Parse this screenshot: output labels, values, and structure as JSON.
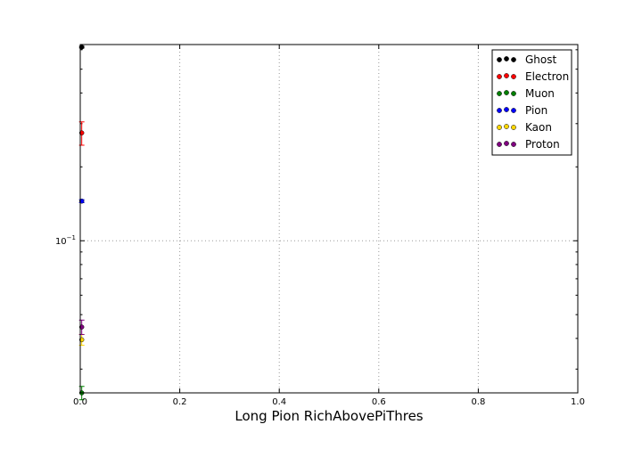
{
  "chart_data": {
    "type": "scatter",
    "title": "",
    "xlabel": "Long Pion RichAbovePiThres",
    "ylabel": "",
    "xlim": [
      0.0,
      1.0
    ],
    "ylim": [
      0.024,
      0.63
    ],
    "yscale": "log",
    "grid": true,
    "legend_position": "top-right",
    "x_ticks": [
      {
        "value": 0.0,
        "label": "0.0"
      },
      {
        "value": 0.2,
        "label": "0.2"
      },
      {
        "value": 0.4,
        "label": "0.4"
      },
      {
        "value": 0.6,
        "label": "0.6"
      },
      {
        "value": 0.8,
        "label": "0.8"
      },
      {
        "value": 1.0,
        "label": "1.0"
      }
    ],
    "y_major_ticks": [
      {
        "value": 0.1,
        "label_base": "10",
        "label_exp": "−1"
      }
    ],
    "series": [
      {
        "name": "Ghost",
        "color": "#000000",
        "points": [
          {
            "x": 0.003,
            "y": 0.615,
            "err": 0.005
          }
        ]
      },
      {
        "name": "Electron",
        "color": "#ff0000",
        "points": [
          {
            "x": 0.003,
            "y": 0.275,
            "err": 0.03
          }
        ]
      },
      {
        "name": "Muon",
        "color": "#008000",
        "points": [
          {
            "x": 0.003,
            "y": 0.024,
            "err": 0.0015
          }
        ]
      },
      {
        "name": "Pion",
        "color": "#0000ff",
        "points": [
          {
            "x": 0.003,
            "y": 0.145,
            "err": 0.002
          }
        ]
      },
      {
        "name": "Kaon",
        "color": "#ffd700",
        "points": [
          {
            "x": 0.003,
            "y": 0.0395,
            "err": 0.002
          }
        ]
      },
      {
        "name": "Proton",
        "color": "#800080",
        "points": [
          {
            "x": 0.003,
            "y": 0.0445,
            "err": 0.003
          }
        ]
      }
    ]
  }
}
